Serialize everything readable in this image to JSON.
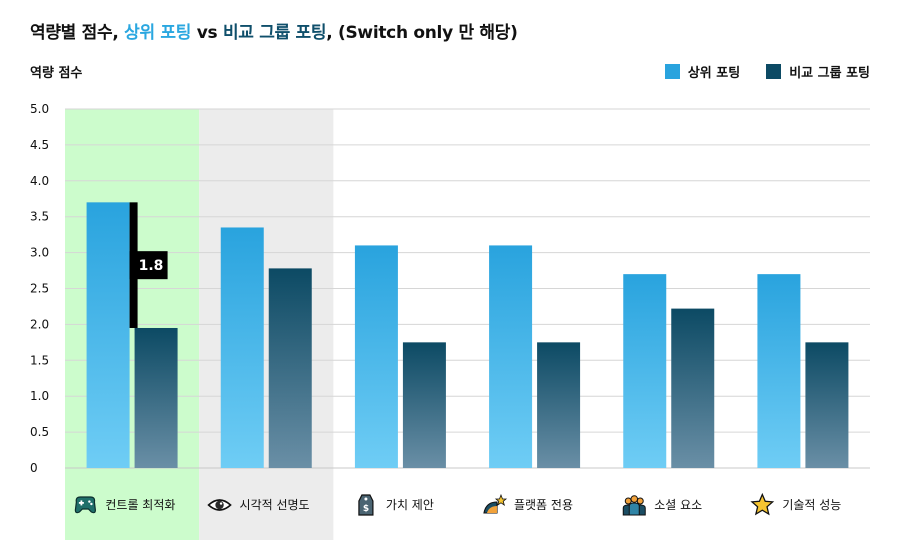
{
  "title": {
    "prefix": "역량별 점수, ",
    "top": "상위 포팅",
    "vs": " vs ",
    "peer": "비교 그룹 포팅",
    "suffix": ", (Switch only 만 해당)"
  },
  "colors": {
    "top_series_top": "#29a3de",
    "top_series_bottom": "#6fcdf5",
    "peer_series_top": "#0c4a64",
    "peer_series_bottom": "#6a8fa6",
    "highlight_green": "#ccfccc",
    "highlight_gray": "#ececec",
    "annotation": "#000000"
  },
  "chart_data": {
    "type": "bar",
    "ylabel": "역량 점수",
    "ylim": [
      0,
      5
    ],
    "yticks": [
      "0",
      "0.5",
      "1.0",
      "1.5",
      "2.0",
      "2.5",
      "3.0",
      "3.5",
      "4.0",
      "4.5",
      "5.0"
    ],
    "grid": true,
    "legend_position": "top-right",
    "categories": [
      {
        "label": "컨트롤 최적화",
        "icon": "gamepad-icon"
      },
      {
        "label": "시각적 선명도",
        "icon": "eye-icon"
      },
      {
        "label": "가치 제안",
        "icon": "price-tag-icon"
      },
      {
        "label": "플랫폼 전용",
        "icon": "platform-icon"
      },
      {
        "label": "소셜 요소",
        "icon": "people-icon"
      },
      {
        "label": "기술적 성능",
        "icon": "star-icon"
      }
    ],
    "series": [
      {
        "name": "상위 포팅",
        "values": [
          3.7,
          3.35,
          3.1,
          3.1,
          2.7,
          2.7
        ]
      },
      {
        "name": "비교 그룹 포팅",
        "values": [
          1.95,
          2.78,
          1.75,
          1.75,
          2.22,
          1.75
        ]
      }
    ],
    "highlighted_categories": {
      "green": 0,
      "gray": 1
    },
    "annotations": [
      {
        "category": 0,
        "text": "1.8"
      }
    ]
  }
}
